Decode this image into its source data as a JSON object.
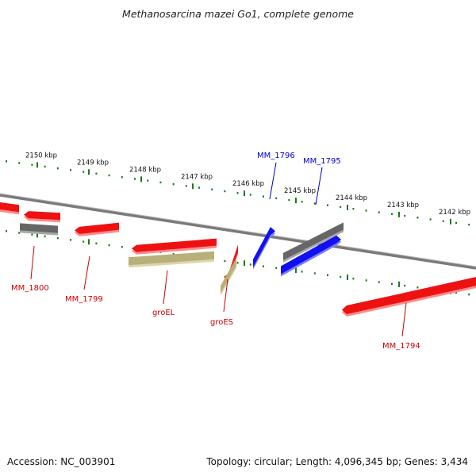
{
  "title": "Methanosarcina mazei Go1, complete genome",
  "footer": {
    "accession": "Accession: NC_003901",
    "summary": "Topology: circular; Length: 4,096,345 bp; Genes: 3,434"
  },
  "colors": {
    "backbone": "#7a7a7a",
    "tick_dot": "#1a7a1a",
    "tick_major": "#1a7a1a",
    "gene_red": "#ee1111",
    "gene_red_shadow": "#ff8a8a",
    "gene_blue": "#1111ee",
    "gene_blue_shadow": "#7c7cff",
    "gene_gray": "#666666",
    "gene_gray_shadow": "#a8a8a8",
    "gene_olive": "#b8b07a",
    "gene_olive_shadow": "#dcd6a8",
    "label_red": "#cc0000",
    "label_blue": "#0000cc"
  },
  "scale": {
    "ticks": [
      "2150 kbp",
      "2149 kbp",
      "2148 kbp",
      "2147 kbp",
      "2146 kbp",
      "2145 kbp",
      "2144 kbp",
      "2143 kbp",
      "2142 kbp"
    ]
  },
  "genes": [
    {
      "label": "MM_1800",
      "strand": "minus",
      "color": "red"
    },
    {
      "label": "MM_1799",
      "strand": "minus",
      "color": "red"
    },
    {
      "label": "groEL",
      "strand": "minus",
      "color": "red"
    },
    {
      "label": "groES",
      "strand": "minus",
      "color": "red"
    },
    {
      "label": "MM_1796",
      "strand": "plus",
      "color": "blue"
    },
    {
      "label": "MM_1795",
      "strand": "plus",
      "color": "blue"
    },
    {
      "label": "MM_1794",
      "strand": "minus",
      "color": "red"
    }
  ]
}
